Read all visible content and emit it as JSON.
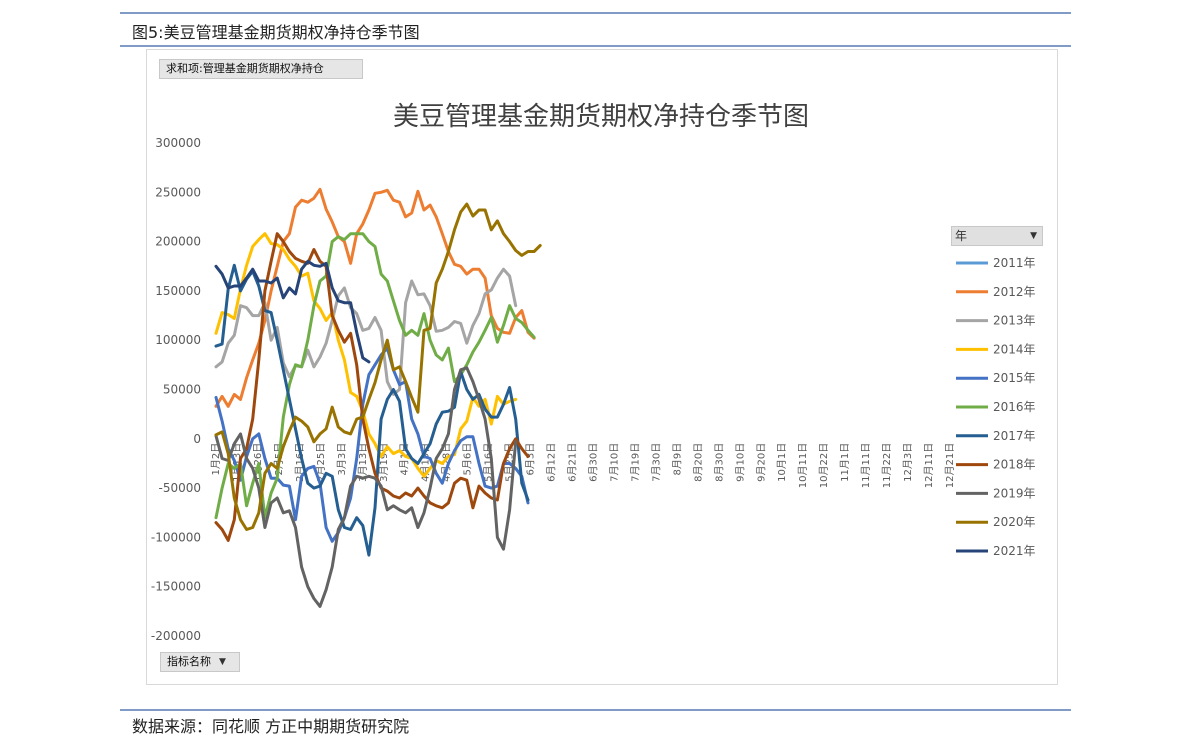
{
  "caption": "图5:美豆管理基金期货期权净持仓季节图",
  "source": "数据来源：同花顺 方正中期期货研究院",
  "pivot": {
    "field_button": "求和项:管理基金期货期权净持仓",
    "axis_button": "指标名称",
    "legend_button": "年"
  },
  "chart_data": {
    "type": "line",
    "title": "美豆管理基金期货期权净持仓季节图",
    "xlabel": "",
    "ylabel": "",
    "ylim": [
      -200000,
      300000
    ],
    "yticks": [
      300000,
      250000,
      200000,
      150000,
      100000,
      50000,
      0,
      -50000,
      -100000,
      -150000,
      -200000
    ],
    "x_tick_labels": [
      "1月2日",
      "1月13日",
      "1月26日",
      "2月5日",
      "2月16日",
      "2月25日",
      "3月3日",
      "3月13日",
      "3月19日",
      "4月1日",
      "4月19日",
      "4月28日",
      "5月6日",
      "5月16日",
      "5月25日",
      "6月3日",
      "6月12日",
      "6月21日",
      "6月30日",
      "7月10日",
      "7月19日",
      "7月30日",
      "8月9日",
      "8月20日",
      "8月30日",
      "9月10日",
      "9月20日",
      "10月1日",
      "10月11日",
      "10月22日",
      "11月1日",
      "11月11日",
      "11月22日",
      "12月3日",
      "12月11日",
      "12月21日"
    ],
    "legend_position": "right",
    "grid": false,
    "series": [
      {
        "name": "2011年",
        "color": "#5b9bd5",
        "values": [
          null,
          null,
          null,
          null,
          null,
          null,
          null,
          null,
          null,
          null,
          null,
          null,
          null,
          null,
          null,
          null,
          null,
          null,
          null,
          null,
          null,
          null,
          null,
          null,
          null,
          null,
          null,
          null,
          null,
          null,
          null,
          null,
          null,
          null,
          null,
          null,
          null,
          null,
          null,
          null,
          null,
          null,
          null,
          null,
          null,
          null,
          null,
          null,
          null,
          null,
          null,
          null,
          null,
          null,
          null,
          null,
          null,
          null,
          null,
          null,
          null,
          null,
          null,
          null,
          null,
          null,
          null,
          null,
          null,
          null,
          null,
          null,
          null,
          null,
          null,
          null,
          null,
          null,
          null,
          null,
          null,
          null,
          null,
          null,
          null,
          null,
          null,
          null,
          null,
          null,
          null,
          null,
          null,
          null,
          null,
          null,
          null,
          null,
          null,
          null,
          null,
          null,
          null,
          null,
          null,
          null,
          null,
          null,
          null,
          null,
          null,
          null,
          null,
          null,
          null,
          null,
          null,
          null,
          null,
          null,
          null
        ]
      },
      {
        "name": "2012年",
        "color": "#ed7d31",
        "values": [
          33000,
          43000,
          33000,
          45000,
          40000,
          62000,
          80000,
          97000,
          120000,
          150000,
          175000,
          200000,
          208000,
          235000,
          242000,
          240000,
          244000,
          253000,
          233000,
          220000,
          205000,
          200000,
          178000,
          208000,
          218000,
          232000,
          249000,
          250000,
          252000,
          242000,
          240000,
          225000,
          229000,
          251000,
          232000,
          237000,
          225000,
          208000,
          190000,
          177000,
          175000,
          167000,
          172000,
          172000,
          163000,
          125000,
          112000,
          108000,
          107000,
          123000,
          130000,
          108000,
          102000
        ]
      },
      {
        "name": "2013年",
        "color": "#a5a5a5",
        "values": [
          73000,
          78000,
          97000,
          105000,
          135000,
          133000,
          125000,
          125000,
          138000,
          100000,
          113000,
          77000,
          63000,
          74000,
          73000,
          90000,
          73000,
          83000,
          97000,
          120000,
          145000,
          153000,
          133000,
          127000,
          110000,
          112000,
          123000,
          110000,
          58000,
          45000,
          50000,
          138000,
          160000,
          146000,
          147000,
          135000,
          109000,
          110000,
          113000,
          119000,
          117000,
          97000,
          115000,
          127000,
          147000,
          151000,
          163000,
          172000,
          165000,
          135000
        ]
      },
      {
        "name": "2014年",
        "color": "#ffc000",
        "values": [
          107000,
          128000,
          126000,
          122000,
          152000,
          176000,
          195000,
          202000,
          208000,
          198000,
          197000,
          192000,
          182000,
          175000,
          165000,
          168000,
          140000,
          132000,
          120000,
          128000,
          100000,
          80000,
          47000,
          43000,
          28000,
          5000,
          -5000,
          -18000,
          -8000,
          -15000,
          -12000,
          -18000,
          -20000,
          -30000,
          -38000,
          -30000,
          -22000,
          -25000,
          -18000,
          -16000,
          10000,
          18000,
          42000,
          33000,
          40000,
          15000,
          43000,
          35000,
          38000,
          40000
        ]
      },
      {
        "name": "2015年",
        "color": "#4472c4",
        "values": [
          42000,
          18000,
          -10000,
          -22000,
          -42000,
          -18000,
          0,
          5000,
          -20000,
          -40000,
          -40000,
          -47000,
          -48000,
          -82000,
          -38000,
          -30000,
          -28000,
          -45000,
          -90000,
          -104000,
          -95000,
          -80000,
          -60000,
          -20000,
          35000,
          65000,
          75000,
          85000,
          92000,
          70000,
          55000,
          58000,
          20000,
          5000,
          -18000,
          -20000,
          -35000,
          -45000,
          -25000,
          -12000,
          -2000,
          2000,
          2000,
          -25000,
          -48000,
          -50000,
          -48000,
          -25000,
          -25000,
          -30000,
          -38000,
          -65000
        ]
      },
      {
        "name": "2016年",
        "color": "#70ad47",
        "values": [
          -80000,
          -50000,
          -25000,
          -30000,
          -25000,
          -68000,
          -45000,
          -25000,
          -80000,
          -55000,
          -40000,
          22000,
          55000,
          75000,
          73000,
          100000,
          135000,
          160000,
          165000,
          200000,
          205000,
          202000,
          208000,
          208000,
          208000,
          200000,
          195000,
          167000,
          160000,
          140000,
          120000,
          105000,
          110000,
          105000,
          127000,
          100000,
          85000,
          80000,
          92000,
          58000,
          65000,
          75000,
          88000,
          98000,
          110000,
          123000,
          98000,
          115000,
          135000,
          122000,
          118000,
          110000,
          103000
        ]
      },
      {
        "name": "2017年",
        "color": "#255e91",
        "values": [
          94000,
          96000,
          152000,
          176000,
          150000,
          162000,
          170000,
          155000,
          130000,
          128000,
          100000,
          70000,
          40000,
          10000,
          -20000,
          -45000,
          -50000,
          -48000,
          -35000,
          -38000,
          -72000,
          -90000,
          -92000,
          -80000,
          -88000,
          -118000,
          -70000,
          20000,
          40000,
          50000,
          38000,
          -10000,
          -20000,
          -25000,
          -15000,
          -5000,
          15000,
          27000,
          28000,
          32000,
          68000,
          50000,
          40000,
          45000,
          30000,
          22000,
          22000,
          35000,
          52000,
          20000,
          -45000,
          -62000
        ]
      },
      {
        "name": "2018年",
        "color": "#9e480e",
        "values": [
          -85000,
          -92000,
          -103000,
          -82000,
          -20000,
          -10000,
          20000,
          80000,
          150000,
          180000,
          208000,
          200000,
          190000,
          183000,
          180000,
          178000,
          192000,
          180000,
          175000,
          125000,
          110000,
          98000,
          107000,
          75000,
          20000,
          -10000,
          -35000,
          -50000,
          -53000,
          -58000,
          -60000,
          -55000,
          -58000,
          -50000,
          -58000,
          -65000,
          -68000,
          -70000,
          -65000,
          -45000,
          -40000,
          -42000,
          -70000,
          -48000,
          -55000,
          -60000,
          -62000,
          -25000,
          -10000,
          0,
          -10000,
          -18000
        ]
      },
      {
        "name": "2019年",
        "color": "#636363",
        "values": [
          3000,
          -20000,
          -22000,
          -5000,
          5000,
          -20000,
          -30000,
          -50000,
          -90000,
          -65000,
          -60000,
          -75000,
          -73000,
          -90000,
          -130000,
          -150000,
          -162000,
          -170000,
          -153000,
          -130000,
          -92000,
          -80000,
          -48000,
          -38000,
          -40000,
          -38000,
          -40000,
          -48000,
          -72000,
          -68000,
          -72000,
          -75000,
          -70000,
          -90000,
          -75000,
          -50000,
          -20000,
          -10000,
          5000,
          50000,
          70000,
          72000,
          58000,
          40000,
          20000,
          -20000,
          -100000,
          -112000,
          -72000,
          -3000
        ]
      },
      {
        "name": "2020年",
        "color": "#997300",
        "values": [
          4000,
          7000,
          -15000,
          -60000,
          -82000,
          -92000,
          -90000,
          -75000,
          -35000,
          -25000,
          -30000,
          -8000,
          8000,
          22000,
          18000,
          12000,
          -3000,
          5000,
          10000,
          32000,
          12000,
          7000,
          5000,
          20000,
          22000,
          40000,
          57000,
          80000,
          100000,
          70000,
          73000,
          58000,
          42000,
          27000,
          110000,
          112000,
          158000,
          172000,
          190000,
          212000,
          230000,
          238000,
          226000,
          232000,
          232000,
          212000,
          221000,
          208000,
          200000,
          191000,
          186000,
          190000,
          190000,
          196000
        ]
      },
      {
        "name": "2021年",
        "color": "#264478",
        "values": [
          175000,
          167000,
          153000,
          155000,
          155000,
          163000,
          172000,
          160000,
          160000,
          158000,
          163000,
          143000,
          153000,
          147000,
          172000,
          180000,
          176000,
          175000,
          178000,
          153000,
          140000,
          138000,
          138000,
          108000,
          82000,
          78000
        ]
      }
    ]
  }
}
